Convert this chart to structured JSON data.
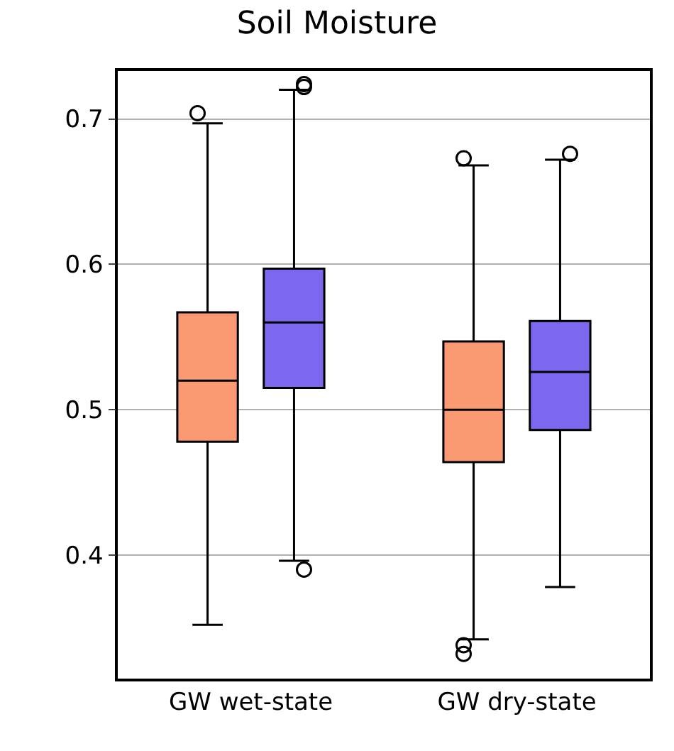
{
  "chart_data": {
    "type": "box",
    "title": "Soil Moisture",
    "categories": [
      "GW wet-state",
      "GW dry-state"
    ],
    "series": [
      {
        "color": "#fa9a73",
        "boxes": [
          {
            "low": 0.352,
            "q1": 0.478,
            "median": 0.52,
            "q3": 0.567,
            "high": 0.697,
            "outliers": [
              0.704
            ]
          },
          {
            "low": 0.342,
            "q1": 0.464,
            "median": 0.5,
            "q3": 0.547,
            "high": 0.668,
            "outliers": [
              0.673,
              0.338,
              0.332
            ]
          }
        ]
      },
      {
        "color": "#7b68ee",
        "boxes": [
          {
            "low": 0.396,
            "q1": 0.515,
            "median": 0.56,
            "q3": 0.597,
            "high": 0.72,
            "outliers": [
              0.722,
              0.724,
              0.39
            ]
          },
          {
            "low": 0.378,
            "q1": 0.486,
            "median": 0.526,
            "q3": 0.561,
            "high": 0.672,
            "outliers": [
              0.676
            ]
          }
        ]
      }
    ],
    "ylim": [
      0.315,
      0.733
    ],
    "yticks": [
      0.4,
      0.5,
      0.6,
      0.7
    ],
    "grid": "y"
  }
}
